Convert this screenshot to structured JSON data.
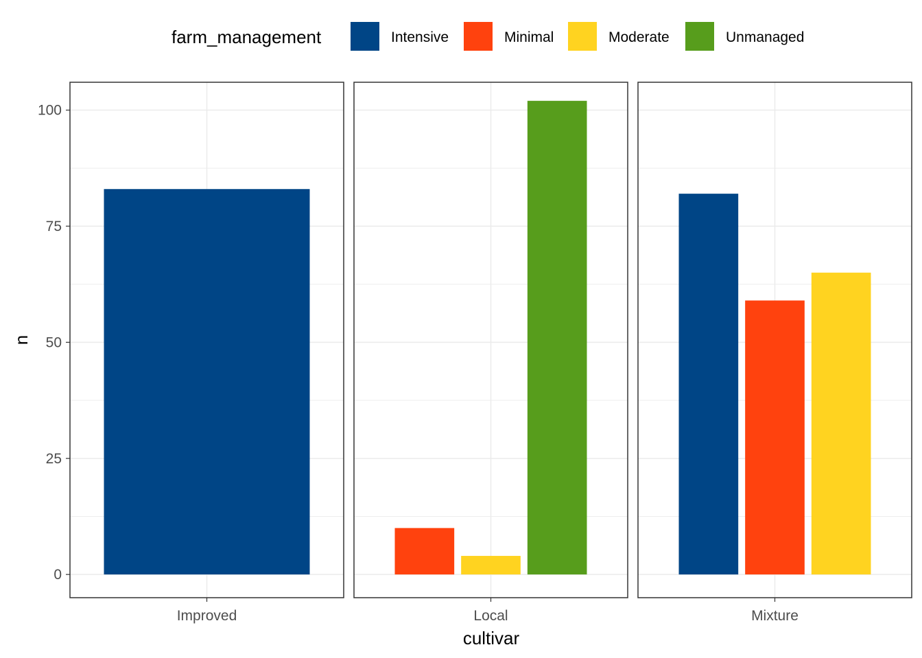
{
  "chart_data": {
    "type": "bar",
    "layout": "faceted",
    "xlabel": "cultivar",
    "ylabel": "n",
    "ylim": [
      -5,
      106
    ],
    "yticks": [
      0,
      25,
      50,
      75,
      100
    ],
    "grid": true,
    "legend": {
      "title": "farm_management",
      "placement": "top",
      "entries": [
        {
          "name": "Intensive",
          "color": "#004586"
        },
        {
          "name": "Minimal",
          "color": "#FF420E"
        },
        {
          "name": "Moderate",
          "color": "#FFD320"
        },
        {
          "name": "Unmanaged",
          "color": "#579D1C"
        }
      ]
    },
    "facets": [
      {
        "label": "Improved",
        "bars": [
          {
            "group": "Intensive",
            "value": 83
          }
        ]
      },
      {
        "label": "Local",
        "bars": [
          {
            "group": "Minimal",
            "value": 10
          },
          {
            "group": "Moderate",
            "value": 4
          },
          {
            "group": "Unmanaged",
            "value": 102
          }
        ]
      },
      {
        "label": "Mixture",
        "bars": [
          {
            "group": "Intensive",
            "value": 82
          },
          {
            "group": "Minimal",
            "value": 59
          },
          {
            "group": "Moderate",
            "value": 65
          }
        ]
      }
    ]
  }
}
